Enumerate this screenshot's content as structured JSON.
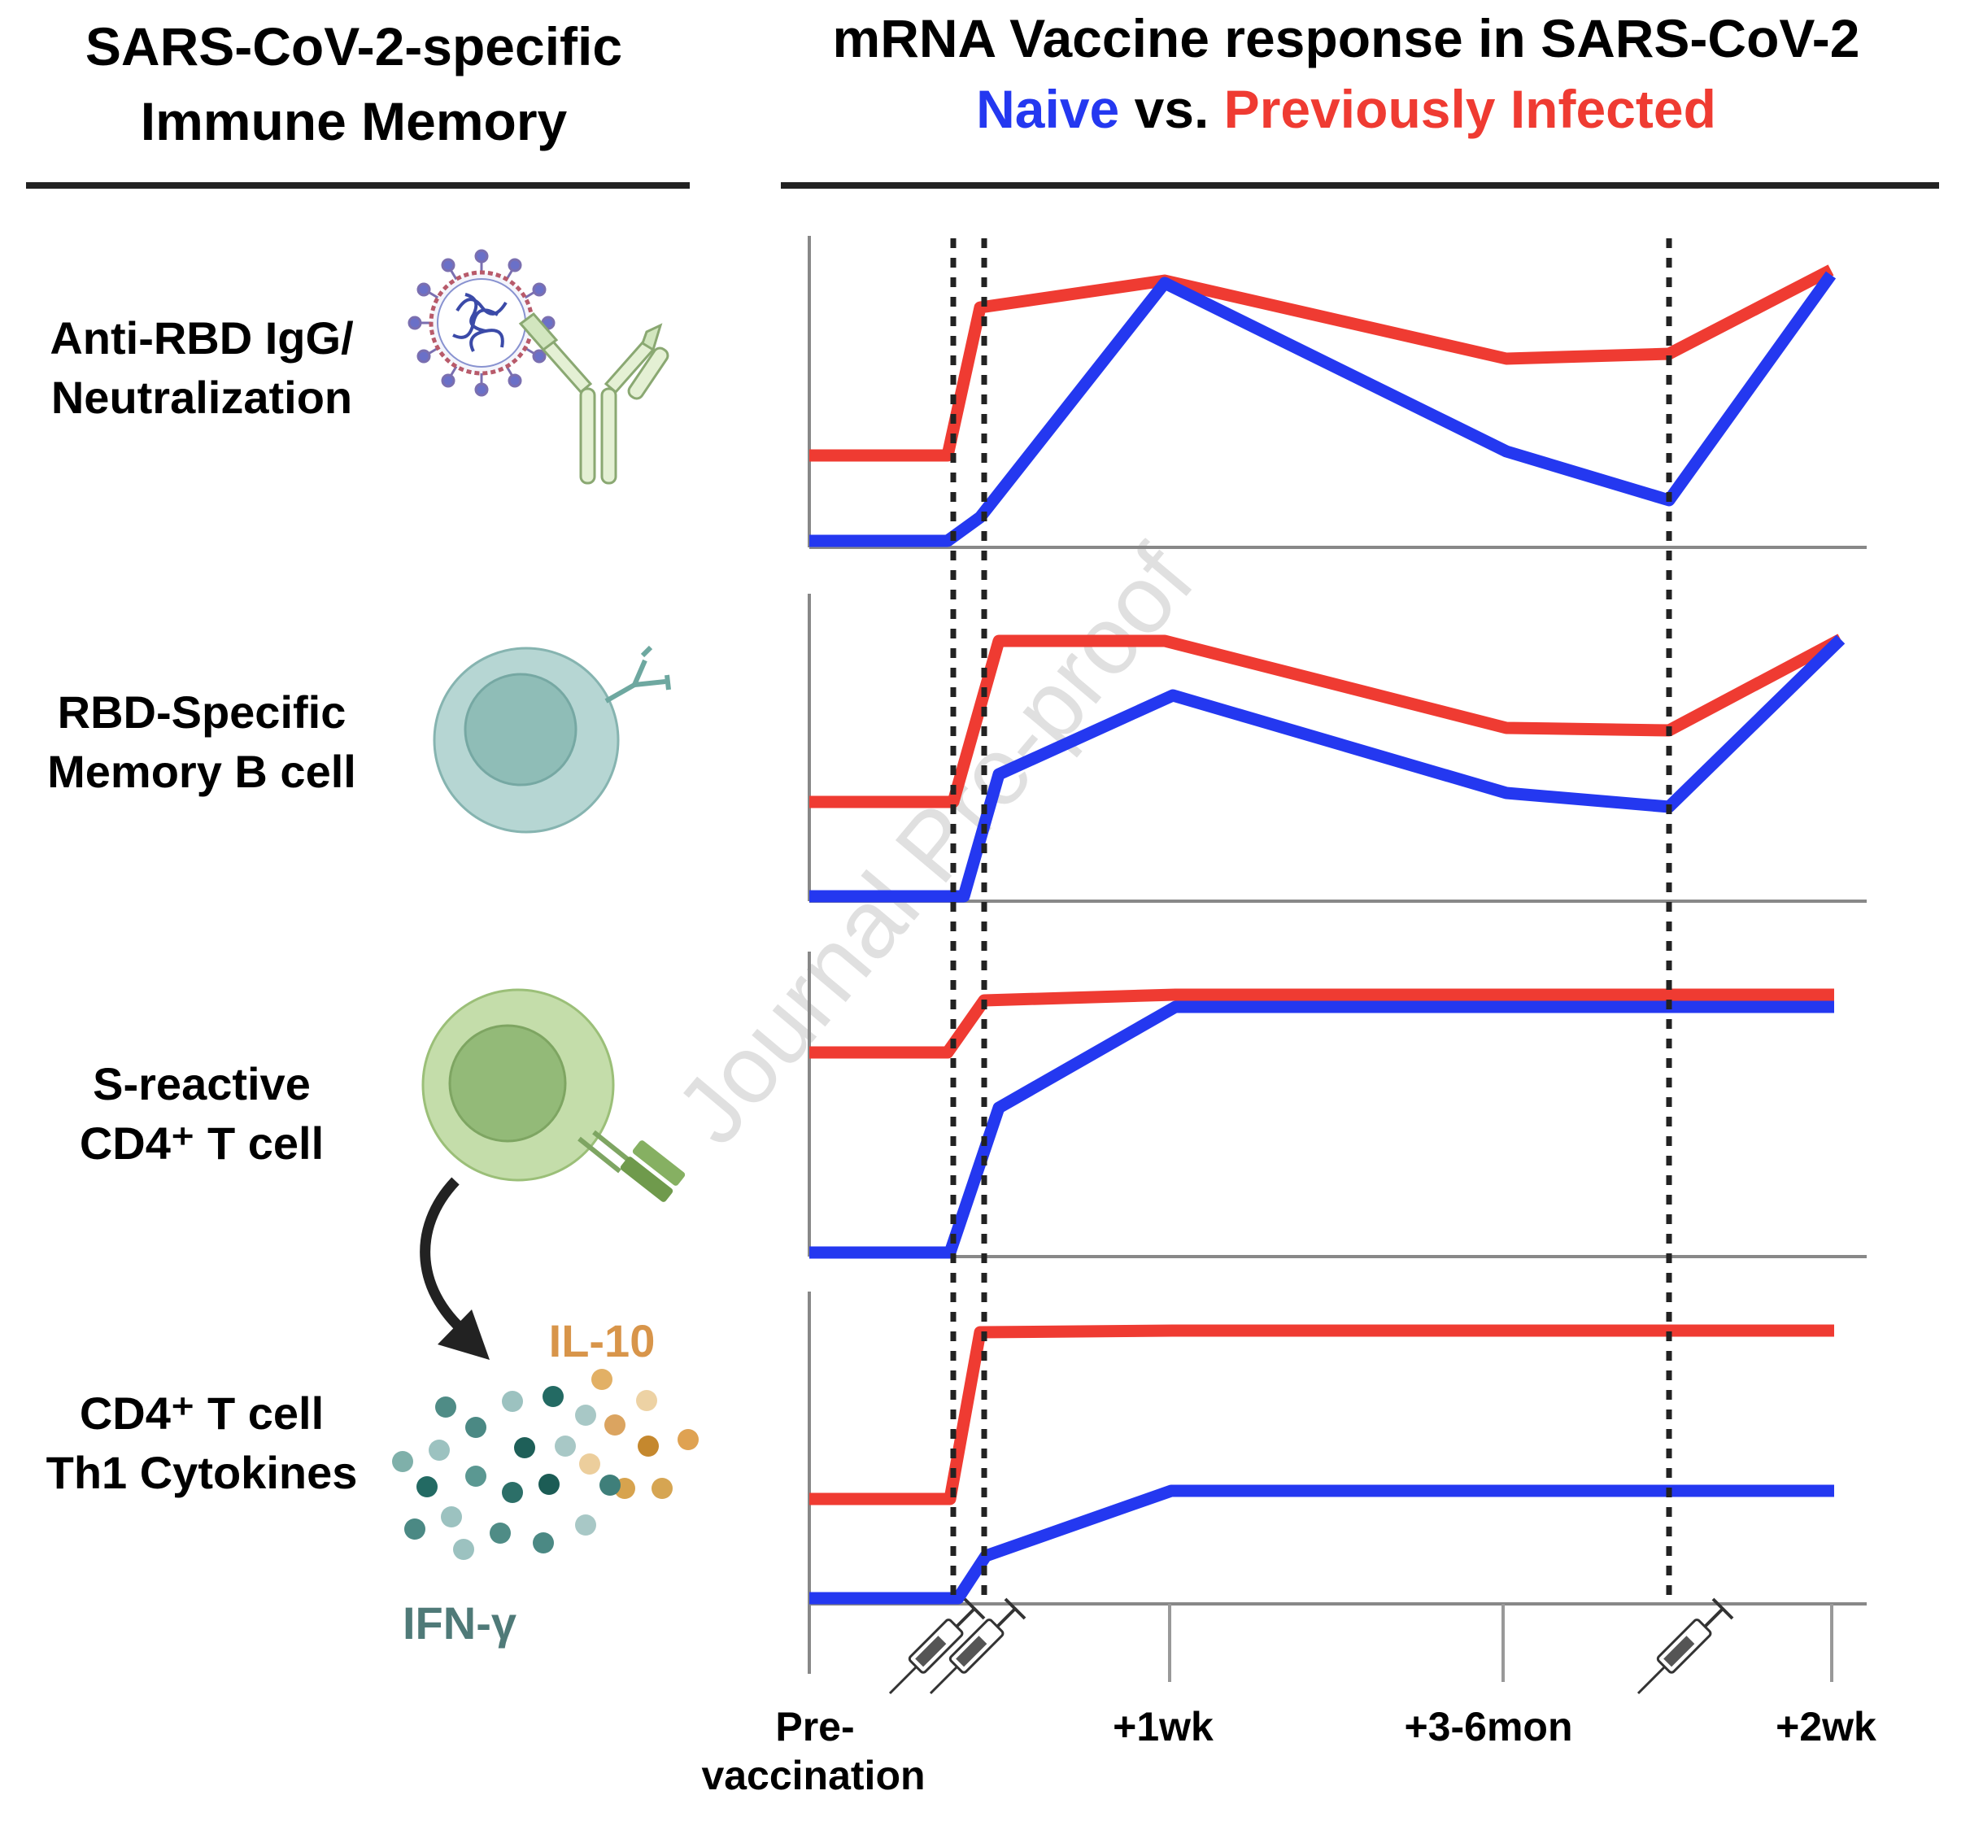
{
  "left_title": {
    "line1": "SARS-CoV-2-specific",
    "line2": "Immune Memory"
  },
  "right_title": {
    "line1": "mRNA Vaccine response in SARS-CoV-2",
    "naive": "Naive",
    "vs": " vs. ",
    "infected": "Previously Infected"
  },
  "colors": {
    "naive": "#2438f0",
    "infected": "#ef3b32",
    "il10": "#d8954a",
    "ifn": "#4f7a78"
  },
  "rows": [
    {
      "line1": "Anti-RBD IgG/",
      "line2": "Neutralization",
      "icon": "virus-antibody-icon"
    },
    {
      "line1": "RBD-Specific",
      "line2": "Memory B cell",
      "icon": "b-cell-icon"
    },
    {
      "line1": "S-reactive",
      "line2": "CD4⁺ T cell",
      "icon": "t-cell-icon"
    },
    {
      "line1": "CD4⁺ T cell",
      "line2": "Th1 Cytokines",
      "icon": "cytokines-icon"
    }
  ],
  "cytokines": {
    "il10": "IL-10",
    "ifn": "IFN-γ"
  },
  "x_axis": {
    "labels": [
      {
        "line1": "Pre-",
        "line2": "vaccination"
      },
      {
        "line1": "+1wk"
      },
      {
        "line1": "+3-6mon"
      },
      {
        "line1": "+2wk"
      }
    ],
    "vaccine_doses": 3
  },
  "watermark": "Journal Pre-proof"
}
